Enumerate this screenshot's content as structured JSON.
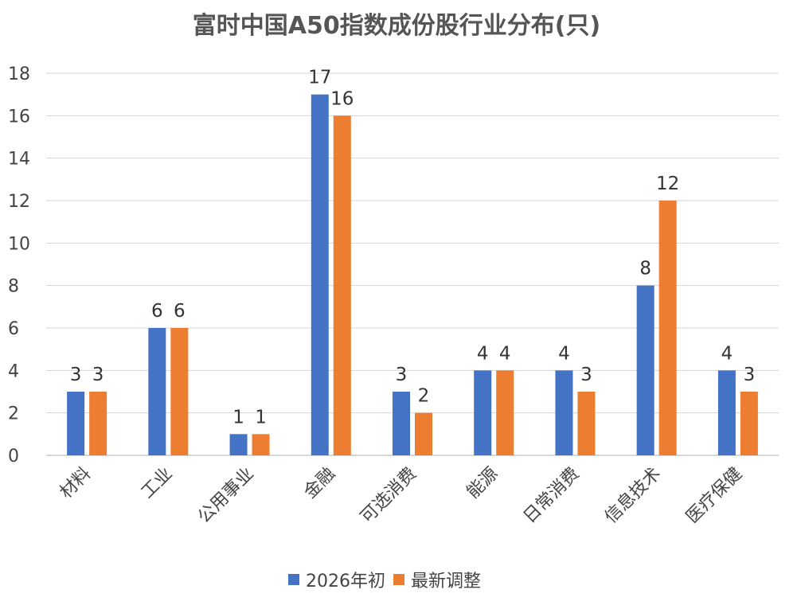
{
  "chart_data": {
    "type": "bar",
    "title": "富时中国A50指数成份股行业分布(只)",
    "categories": [
      "材料",
      "工业",
      "公用事业",
      "金融",
      "可选消费",
      "能源",
      "日常消费",
      "信息技术",
      "医疗保健"
    ],
    "series": [
      {
        "name": "2026年初",
        "color": "#4472C4",
        "values": [
          3,
          6,
          1,
          17,
          3,
          4,
          4,
          8,
          4
        ]
      },
      {
        "name": "最新调整",
        "color": "#ED7D31",
        "values": [
          3,
          6,
          1,
          16,
          2,
          4,
          3,
          12,
          3
        ]
      }
    ],
    "ylim": [
      0,
      18
    ],
    "yticks": [
      0,
      2,
      4,
      6,
      8,
      10,
      12,
      14,
      16,
      18
    ],
    "xlabel": "",
    "ylabel": "",
    "grid": true,
    "legend_position": "bottom",
    "data_labels": true
  }
}
